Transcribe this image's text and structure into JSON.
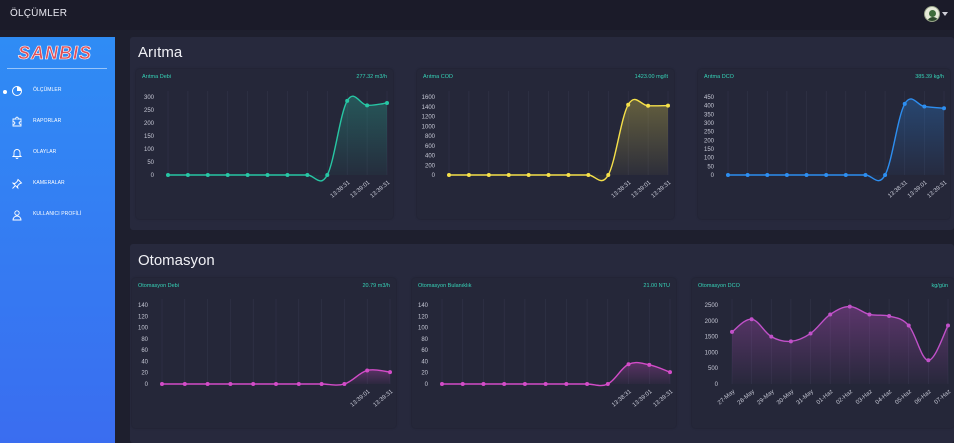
{
  "header": {
    "title": "ÖLÇÜMLER"
  },
  "brand": {
    "logo_text": "SANBIS"
  },
  "sidebar": {
    "items": [
      {
        "label": "ÖLÇÜMLER",
        "icon": "chart-pie-icon"
      },
      {
        "label": "RAPORLAR",
        "icon": "puzzle-icon"
      },
      {
        "label": "OLAYLAR",
        "icon": "bell-icon"
      },
      {
        "label": "KAMERALAR",
        "icon": "pin-icon"
      },
      {
        "label": "KULLANICI PROFİLİ",
        "icon": "user-icon"
      }
    ]
  },
  "sections": [
    {
      "title": "Arıtma"
    },
    {
      "title": "Otomasyon"
    }
  ],
  "colors": {
    "teal": "#27c6a4",
    "yellow": "#f5e04a",
    "blue": "#2d8ef0",
    "magenta": "#d34cc8",
    "purple": "#c151c9",
    "label": "#36d4b8"
  },
  "chart_data": [
    {
      "type": "line",
      "title": "Arıtma Debi",
      "value_text": "277.32  m3/h",
      "color": "#27c6a4",
      "y_ticks": [
        "300",
        "250",
        "200",
        "150",
        "100",
        "50",
        "0"
      ],
      "ylim": [
        0,
        300
      ],
      "values": [
        0,
        0,
        0,
        0,
        0,
        0,
        0,
        0,
        0,
        285,
        268,
        277
      ],
      "x_tick_labels": [
        "13:38:31",
        "13:39:01",
        "13:39:31"
      ],
      "x_tick_positions": [
        9,
        10,
        11
      ]
    },
    {
      "type": "line",
      "title": "Arıtma COD",
      "value_text": "1423.00  mg/lt",
      "color": "#f5e04a",
      "y_ticks": [
        "1600",
        "1400",
        "1200",
        "1000",
        "800",
        "600",
        "400",
        "200",
        "0"
      ],
      "ylim": [
        0,
        1600
      ],
      "values": [
        0,
        0,
        0,
        0,
        0,
        0,
        0,
        0,
        0,
        1440,
        1420,
        1423
      ],
      "x_tick_labels": [
        "13:38:31",
        "13:39:01",
        "13:39:31"
      ],
      "x_tick_positions": [
        9,
        10,
        11
      ]
    },
    {
      "type": "line",
      "title": "Arıtma DCO",
      "value_text": "385.39  kg/h",
      "color": "#2d8ef0",
      "y_ticks": [
        "450",
        "400",
        "350",
        "300",
        "250",
        "200",
        "150",
        "100",
        "50",
        "0"
      ],
      "ylim": [
        0,
        450
      ],
      "values": [
        0,
        0,
        0,
        0,
        0,
        0,
        0,
        0,
        0,
        410,
        395,
        385
      ],
      "x_tick_labels": [
        "13:38:31",
        "13:39:01",
        "13:39:31"
      ],
      "x_tick_positions": [
        9,
        10,
        11
      ]
    },
    {
      "type": "line",
      "title": "Otomasyon Debi",
      "value_text": "20.79  m3/h",
      "color": "#d34cc8",
      "y_ticks": [
        "140",
        "120",
        "100",
        "80",
        "60",
        "40",
        "20",
        "0"
      ],
      "ylim": [
        0,
        140
      ],
      "values": [
        0,
        0,
        0,
        0,
        0,
        0,
        0,
        0,
        0,
        24,
        21
      ],
      "x_tick_labels": [
        "13:39:01",
        "13:39:31"
      ],
      "x_tick_positions": [
        9,
        10
      ]
    },
    {
      "type": "line",
      "title": "Otomasyon Bulanıklık",
      "value_text": "21.00  NTU",
      "color": "#d34cc8",
      "y_ticks": [
        "140",
        "120",
        "100",
        "80",
        "60",
        "40",
        "20",
        "0"
      ],
      "ylim": [
        0,
        140
      ],
      "values": [
        0,
        0,
        0,
        0,
        0,
        0,
        0,
        0,
        0,
        35,
        34,
        21
      ],
      "x_tick_labels": [
        "13:38:31",
        "13:39:01",
        "13:39:31"
      ],
      "x_tick_positions": [
        9,
        10,
        11
      ]
    },
    {
      "type": "area",
      "title": "Otomasyon DCO",
      "value_text": "kg/gün",
      "color": "#c151c9",
      "y_ticks": [
        "2500",
        "2000",
        "1500",
        "1000",
        "500",
        "0"
      ],
      "ylim": [
        0,
        2500
      ],
      "categories": [
        "27-May",
        "28-May",
        "29-May",
        "30-May",
        "31-May",
        "01-Haz",
        "02-Haz",
        "03-Haz",
        "04-Haz",
        "05-Haz",
        "06-Haz",
        "07-Haz"
      ],
      "values": [
        1650,
        2050,
        1500,
        1350,
        1600,
        2200,
        2450,
        2200,
        2150,
        1850,
        750,
        1850
      ],
      "x_tick_labels": [
        "27-May",
        "28-May",
        "29-May",
        "30-May",
        "31-May",
        "01-Haz",
        "02-Haz",
        "03-Haz",
        "04-Haz",
        "05-Haz",
        "06-Haz",
        "07-Haz"
      ],
      "x_tick_positions": [
        0,
        1,
        2,
        3,
        4,
        5,
        6,
        7,
        8,
        9,
        10,
        11
      ]
    }
  ]
}
